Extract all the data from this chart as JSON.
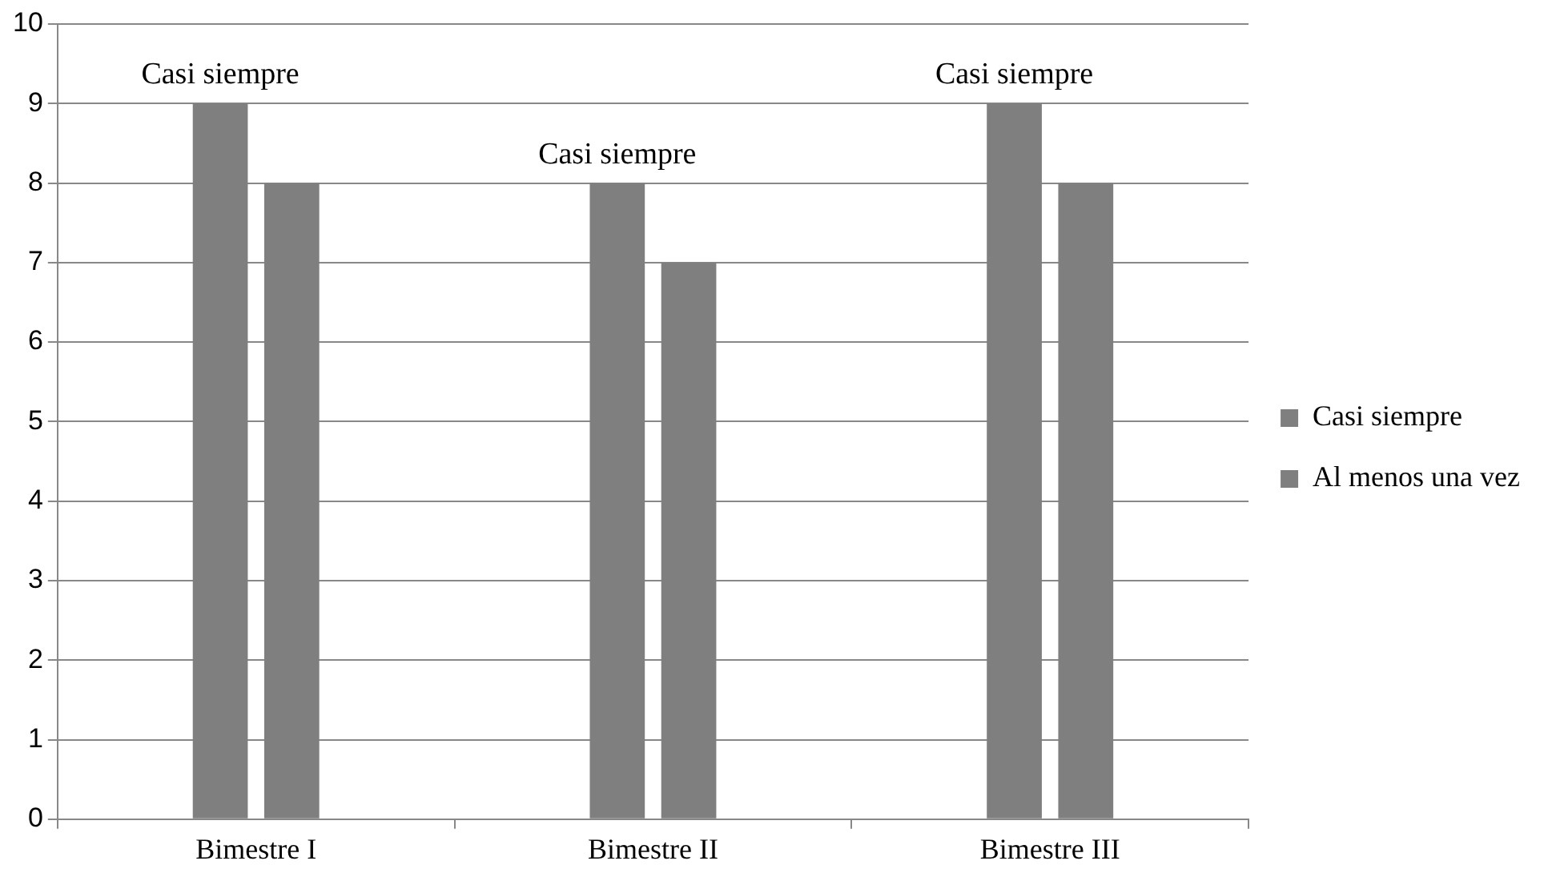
{
  "chart_data": {
    "type": "bar",
    "categories": [
      "Bimestre I",
      "Bimestre II",
      "Bimestre III"
    ],
    "series": [
      {
        "name": "Casi siempre",
        "color": "#7f7f7f",
        "values": [
          9,
          8,
          9
        ]
      },
      {
        "name": "Al menos una vez",
        "color": "#7f7f7f",
        "values": [
          8,
          7,
          8
        ]
      }
    ],
    "ylim": [
      0,
      10
    ],
    "yticks": [
      0,
      1,
      2,
      3,
      4,
      5,
      6,
      7,
      8,
      9,
      10
    ],
    "grid": "y",
    "legend": "right",
    "annotations": [
      "Casi siempre",
      "Casi siempre",
      "Casi siempre"
    ]
  }
}
